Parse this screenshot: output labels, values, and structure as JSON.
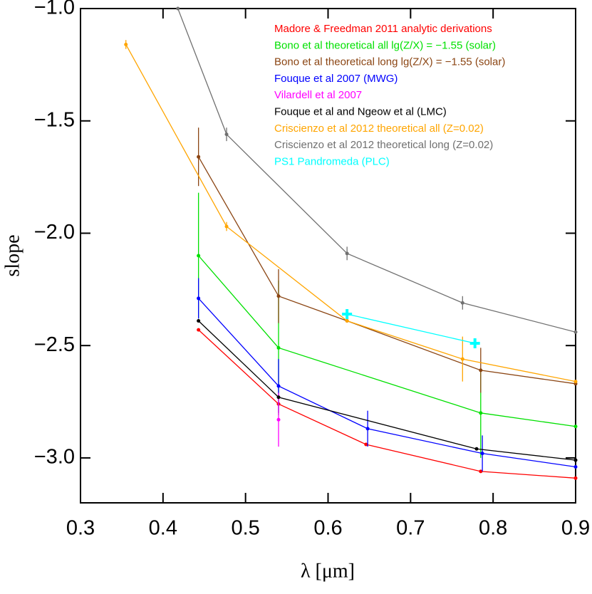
{
  "chart_data": {
    "type": "line",
    "xlabel": "λ [μm]",
    "ylabel": "slope",
    "xlim": [
      0.3,
      0.9
    ],
    "ylim": [
      -3.2,
      -1.0
    ],
    "xticks": [
      0.3,
      0.4,
      0.5,
      0.6,
      0.7,
      0.8,
      0.9
    ],
    "yticks": [
      {
        "value": -1.0,
        "label": "−1.0"
      },
      {
        "value": -1.5,
        "label": "−1.5"
      },
      {
        "value": -2.0,
        "label": "−2.0"
      },
      {
        "value": -2.5,
        "label": "−2.5"
      },
      {
        "value": -3.0,
        "label": "−3.0"
      }
    ],
    "series": [
      {
        "name": "Madore & Freedman 2011 analytic derivations",
        "color": "#ff0000",
        "x": [
          0.443,
          0.54,
          0.646,
          0.785,
          0.9
        ],
        "values": [
          -2.43,
          -2.76,
          -2.94,
          -3.06,
          -3.09
        ]
      },
      {
        "name": "Bono et al theoretical all lg(Z/X) = −1.55 (solar)",
        "color": "#00e000",
        "x": [
          0.443,
          0.54,
          0.785,
          0.9
        ],
        "values": [
          -2.1,
          -2.51,
          -2.8,
          -2.86
        ],
        "errors": [
          0.28,
          0.3,
          0.2,
          null
        ]
      },
      {
        "name": "Bono et al theoretical long lg(Z/X) = −1.55 (solar)",
        "color": "#8b4513",
        "x": [
          0.443,
          0.54,
          0.623,
          0.785,
          0.9
        ],
        "values": [
          -1.66,
          -2.28,
          -2.39,
          -2.61,
          -2.67
        ],
        "errors": [
          0.13,
          0.12,
          null,
          0.1,
          null
        ]
      },
      {
        "name": "Fouque et al 2007 (MWG)",
        "color": "#0000ff",
        "x": [
          0.443,
          0.54,
          0.648,
          0.787,
          0.9
        ],
        "values": [
          -2.29,
          -2.68,
          -2.87,
          -2.98,
          -3.04
        ],
        "errors": [
          0.09,
          0.12,
          0.08,
          0.08,
          null
        ]
      },
      {
        "name": "Vilardell et al 2007",
        "color": "#ff00ff",
        "x": [
          0.54
        ],
        "values": [
          -2.83
        ],
        "errors": [
          0.12
        ]
      },
      {
        "name": "Fouque et al and Ngeow et al (LMC)",
        "color": "#000000",
        "x": [
          0.443,
          0.54,
          0.78,
          0.9
        ],
        "values": [
          -2.39,
          -2.73,
          -2.96,
          -3.01
        ]
      },
      {
        "name": "Criscienzo et al 2012 theoretical all (Z=0.02)",
        "color": "#ffa500",
        "x": [
          0.355,
          0.477,
          0.623,
          0.763,
          0.9
        ],
        "values": [
          -1.16,
          -1.97,
          -2.39,
          -2.56,
          -2.66
        ],
        "errors": [
          0.02,
          0.02,
          null,
          0.1,
          null
        ]
      },
      {
        "name": "Criscienzo et al 2012 theoretical long (Z=0.02)",
        "color": "#707070",
        "x": [
          0.418,
          0.477,
          0.623,
          0.763,
          0.9
        ],
        "values": [
          -1.0,
          -1.56,
          -2.09,
          -2.31,
          -2.44
        ],
        "errors": [
          null,
          0.03,
          0.03,
          0.03,
          null
        ]
      },
      {
        "name": "PS1 Pandromeda (PLC)",
        "color": "#00ffff",
        "marker": "plus",
        "x": [
          0.623,
          0.778
        ],
        "values": [
          -2.36,
          -2.49
        ]
      }
    ]
  }
}
